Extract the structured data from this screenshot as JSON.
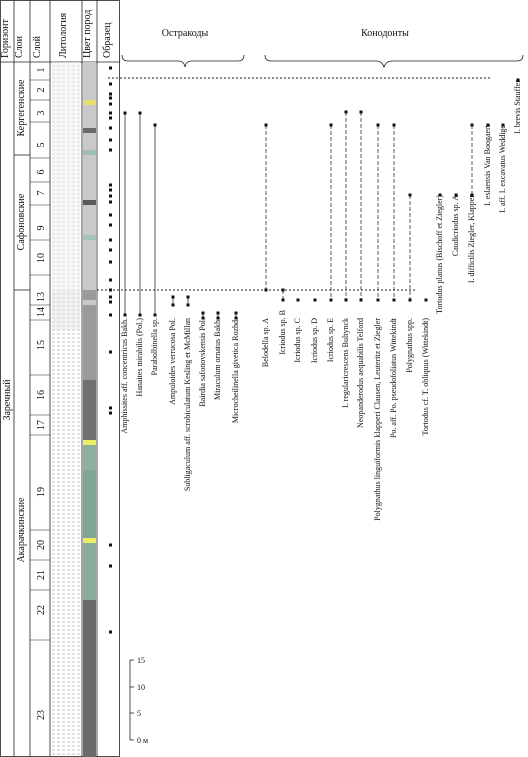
{
  "header": {
    "columns": [
      "Горизонт",
      "Слои",
      "Слой",
      "Литология",
      "Цвет пород",
      "Образец"
    ]
  },
  "horizon": "Заречный",
  "members": [
    "Кергегенские",
    "Сафоновские",
    "Акарачкинские"
  ],
  "layers": [
    "1",
    "2",
    "3",
    "5",
    "6",
    "7",
    "9",
    "10",
    "13",
    "14",
    "15",
    "16",
    "17",
    "19",
    "20",
    "21",
    "22",
    "23"
  ],
  "groups": [
    {
      "title": "Остракоды",
      "taxa": [
        "Amphissites aff. concentricus Bakh.",
        "Hanaites mirabilis (Pol.)",
        "Parabolbinella sp.",
        "Ampuloides verrucosa Pol.",
        "Subligaculum aff. scrobiculatum Kesling et McMillan",
        "Bairdia safonovskensis Pol.",
        "Miraculum ornatus Bakh.",
        "Microcheilinella givetica Rozhd."
      ]
    },
    {
      "title": "Конодонты",
      "taxa": [
        "Belodella sp. A",
        "Icriodus sp. B",
        "Icriodus sp. C",
        "Icriodus sp. D",
        "Icriodus sp. E",
        "I. regularicrescens Bultynck",
        "Neopanderodus aequabilis Telford",
        "Polygnathus linguiformis klapperi Clausen, Leuteritz et Ziegler",
        "Po. aff. Po. pseudofoliatus Wittekindt",
        "Polygnathus spp.",
        "Tortodus cf. T. obliquus (Wittekindt)",
        "Tortodus planus (Bischoff et Ziegler)",
        "Caudicriodus sp. A",
        "I. difficilis Ziegler, Klapper",
        "I. eslaensis Van Boogaert",
        "I. aff. I. excavatus Weddige",
        "I. brevis Stauffer"
      ]
    }
  ],
  "scale": {
    "ticks": [
      "15",
      "10",
      "5",
      "0 м"
    ]
  }
}
